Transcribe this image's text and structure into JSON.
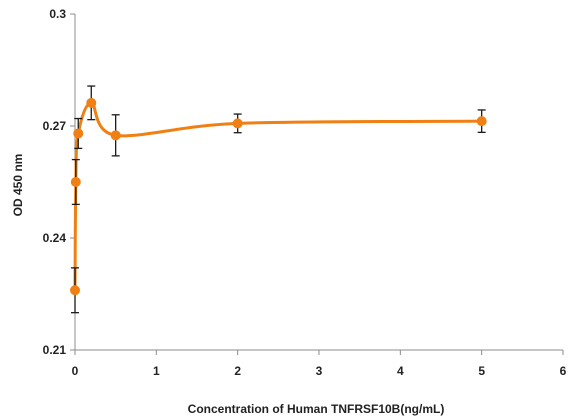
{
  "chart_data": {
    "type": "line",
    "title": "",
    "xlabel": "Concentration of Human TNFRSF10B(ng/mL)",
    "ylabel": "OD 450 nm",
    "xlim": [
      0,
      6
    ],
    "ylim": [
      0.21,
      0.3
    ],
    "xticks": [
      "0",
      "1",
      "2",
      "3",
      "4",
      "5",
      "6"
    ],
    "yticks": [
      "0.21",
      "0.24",
      "0.27",
      "0.3"
    ],
    "grid": false,
    "legend": "none",
    "series": [
      {
        "color": "#f07f14",
        "smooth": true,
        "points": [
          {
            "x": 0.0,
            "y": 0.226,
            "err": 0.006
          },
          {
            "x": 0.01,
            "y": 0.255,
            "err": 0.006
          },
          {
            "x": 0.04,
            "y": 0.268,
            "err": 0.004
          },
          {
            "x": 0.2,
            "y": 0.2762,
            "err": 0.0045
          },
          {
            "x": 0.5,
            "y": 0.2675,
            "err": 0.0055
          },
          {
            "x": 2.0,
            "y": 0.2707,
            "err": 0.0025
          },
          {
            "x": 5.0,
            "y": 0.2713,
            "err": 0.003
          }
        ]
      }
    ]
  }
}
